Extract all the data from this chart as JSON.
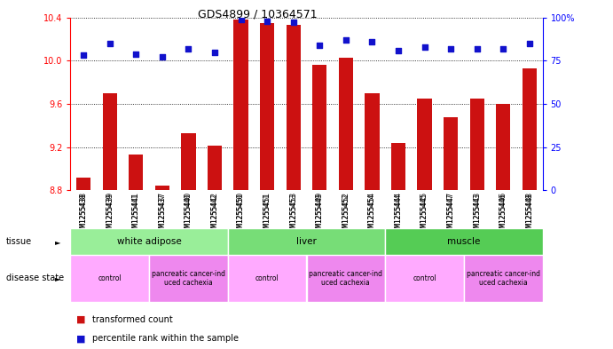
{
  "title": "GDS4899 / 10364571",
  "samples": [
    "GSM1255438",
    "GSM1255439",
    "GSM1255441",
    "GSM1255437",
    "GSM1255440",
    "GSM1255442",
    "GSM1255450",
    "GSM1255451",
    "GSM1255453",
    "GSM1255449",
    "GSM1255452",
    "GSM1255454",
    "GSM1255444",
    "GSM1255445",
    "GSM1255447",
    "GSM1255443",
    "GSM1255446",
    "GSM1255448"
  ],
  "transformed_count": [
    8.92,
    9.7,
    9.13,
    8.84,
    9.33,
    9.21,
    10.38,
    10.35,
    10.33,
    9.96,
    10.03,
    9.7,
    9.24,
    9.65,
    9.48,
    9.65,
    9.6,
    9.93
  ],
  "percentile_rank": [
    78,
    85,
    79,
    77,
    82,
    80,
    99,
    98,
    97,
    84,
    87,
    86,
    81,
    83,
    82,
    82,
    82,
    85
  ],
  "ylim_left": [
    8.8,
    10.4
  ],
  "ylim_right": [
    0,
    100
  ],
  "yticks_left": [
    8.8,
    9.2,
    9.6,
    10.0,
    10.4
  ],
  "yticks_right": [
    0,
    25,
    50,
    75,
    100
  ],
  "bar_color": "#cc1111",
  "dot_color": "#1111cc",
  "tissue_groups": [
    {
      "label": "white adipose",
      "start": 0,
      "end": 6,
      "color": "#99ee99"
    },
    {
      "label": "liver",
      "start": 6,
      "end": 12,
      "color": "#77dd77"
    },
    {
      "label": "muscle",
      "start": 12,
      "end": 18,
      "color": "#55cc55"
    }
  ],
  "disease_groups": [
    {
      "label": "control",
      "start": 0,
      "end": 3,
      "color": "#ffaaff"
    },
    {
      "label": "pancreatic cancer-ind\nuced cachexia",
      "start": 3,
      "end": 6,
      "color": "#ee88ee"
    },
    {
      "label": "control",
      "start": 6,
      "end": 9,
      "color": "#ffaaff"
    },
    {
      "label": "pancreatic cancer-ind\nuced cachexia",
      "start": 9,
      "end": 12,
      "color": "#ee88ee"
    },
    {
      "label": "control",
      "start": 12,
      "end": 15,
      "color": "#ffaaff"
    },
    {
      "label": "pancreatic cancer-ind\nuced cachexia",
      "start": 15,
      "end": 18,
      "color": "#ee88ee"
    }
  ],
  "tissue_label": "tissue",
  "disease_label": "disease state",
  "legend_items": [
    {
      "label": "transformed count",
      "color": "#cc1111"
    },
    {
      "label": "percentile rank within the sample",
      "color": "#1111cc"
    }
  ],
  "background_color": "#ffffff",
  "bar_bottom": 8.8,
  "sample_bg_color": "#cccccc",
  "title_fontsize": 9,
  "tick_fontsize": 7,
  "sample_fontsize": 5.5
}
